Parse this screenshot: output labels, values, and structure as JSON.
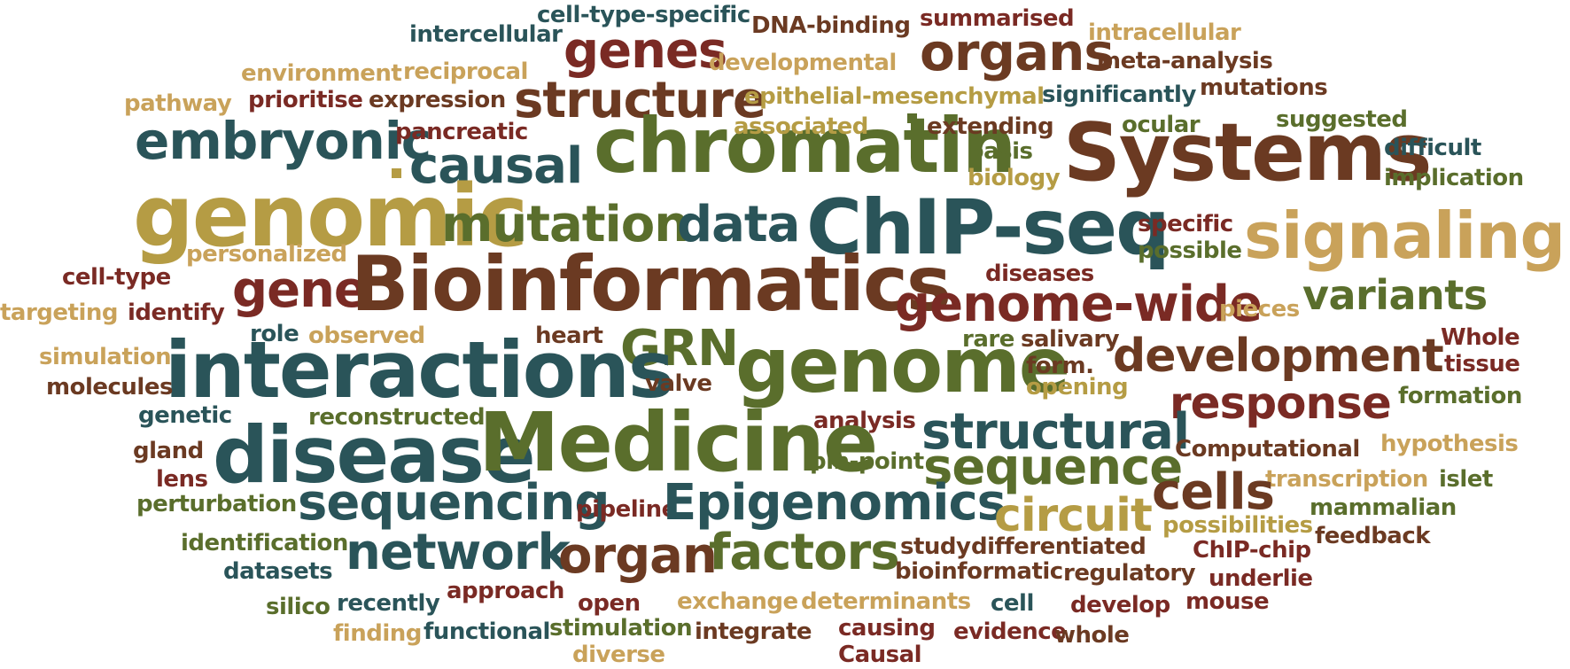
{
  "palette": {
    "teal": "#2a5459",
    "brown": "#6b3a22",
    "maroon": "#7a2a24",
    "olive": "#5a6e2c",
    "gold": "#b59c44",
    "tan": "#c9a25a",
    "ochre": "#a67b34"
  },
  "words": [
    {
      "text": "cell-type-specific",
      "color": "#2a5459"
    },
    {
      "text": "DNA-binding",
      "color": "#6b3a22"
    },
    {
      "text": "summarised",
      "color": "#7a2a24"
    },
    {
      "text": "intercellular",
      "color": "#2a5459"
    },
    {
      "text": "genes",
      "color": "#7a2a24"
    },
    {
      "text": "organs",
      "color": "#6b3a22"
    },
    {
      "text": "intracellular",
      "color": "#c9a25a"
    },
    {
      "text": "environment",
      "color": "#c9a25a"
    },
    {
      "text": "reciprocal",
      "color": "#c9a25a"
    },
    {
      "text": "developmental",
      "color": "#c9a25a"
    },
    {
      "text": "meta-analysis",
      "color": "#6b3a22"
    },
    {
      "text": "pathway",
      "color": "#c9a25a"
    },
    {
      "text": "prioritise",
      "color": "#7a2a24"
    },
    {
      "text": "expression",
      "color": "#6b3a22"
    },
    {
      "text": "structure",
      "color": "#6b3a22"
    },
    {
      "text": "epithelial-mesenchymal",
      "color": "#b59c44"
    },
    {
      "text": "significantly",
      "color": "#2a5459"
    },
    {
      "text": "mutations",
      "color": "#6b3a22"
    },
    {
      "text": "embryonic",
      "color": "#2a5459"
    },
    {
      "text": "pancreatic",
      "color": "#7a2a24"
    },
    {
      "text": "chromatin",
      "color": "#5a6e2c"
    },
    {
      "text": "associated",
      "color": "#b59c44"
    },
    {
      "text": "extending",
      "color": "#6b3a22"
    },
    {
      "text": "ocular",
      "color": "#5a6e2c"
    },
    {
      "text": "suggested",
      "color": "#5a6e2c"
    },
    {
      "text": "Systems",
      "color": "#6b3a22"
    },
    {
      "text": "basis",
      "color": "#5a6e2c"
    },
    {
      "text": "difficult",
      "color": "#2a5459"
    },
    {
      "text": "causal",
      "color": "#2a5459"
    },
    {
      "text": "biology",
      "color": "#b59c44"
    },
    {
      "text": "implication",
      "color": "#5a6e2c"
    },
    {
      "text": "genomic",
      "color": "#b59c44"
    },
    {
      "text": "mutation",
      "color": "#5a6e2c"
    },
    {
      "text": "data",
      "color": "#2a5459"
    },
    {
      "text": "ChIP-seq",
      "color": "#2a5459"
    },
    {
      "text": "specific",
      "color": "#7a2a24"
    },
    {
      "text": "signaling",
      "color": "#c9a25a"
    },
    {
      "text": "possible",
      "color": "#5a6e2c"
    },
    {
      "text": "personalized",
      "color": "#c9a25a"
    },
    {
      "text": "cell-type",
      "color": "#7a2a24"
    },
    {
      "text": "gene",
      "color": "#7a2a24"
    },
    {
      "text": "Bioinformatics",
      "color": "#6b3a22"
    },
    {
      "text": "diseases",
      "color": "#7a2a24"
    },
    {
      "text": "genome-wide",
      "color": "#7a2a24"
    },
    {
      "text": "variants",
      "color": "#5a6e2c"
    },
    {
      "text": "targeting",
      "color": "#c9a25a"
    },
    {
      "text": "identify",
      "color": "#7a2a24"
    },
    {
      "text": "pieces",
      "color": "#c9a25a"
    },
    {
      "text": "role",
      "color": "#2a5459"
    },
    {
      "text": "observed",
      "color": "#c9a25a"
    },
    {
      "text": "heart",
      "color": "#6b3a22"
    },
    {
      "text": "rare",
      "color": "#5a6e2c"
    },
    {
      "text": "salivary",
      "color": "#6b3a22"
    },
    {
      "text": "Whole",
      "color": "#7a2a24"
    },
    {
      "text": "GRN",
      "color": "#5a6e2c"
    },
    {
      "text": "interactions",
      "color": "#2a5459"
    },
    {
      "text": "development",
      "color": "#6b3a22"
    },
    {
      "text": "simulation",
      "color": "#c9a25a"
    },
    {
      "text": "genome",
      "color": "#5a6e2c"
    },
    {
      "text": "form.",
      "color": "#6b3a22"
    },
    {
      "text": "tissue",
      "color": "#7a2a24"
    },
    {
      "text": "molecules",
      "color": "#6b3a22"
    },
    {
      "text": "valve",
      "color": "#6b3a22"
    },
    {
      "text": "opening",
      "color": "#b59c44"
    },
    {
      "text": "response",
      "color": "#7a2a24"
    },
    {
      "text": "formation",
      "color": "#5a6e2c"
    },
    {
      "text": "genetic",
      "color": "#2a5459"
    },
    {
      "text": "reconstructed",
      "color": "#5a6e2c"
    },
    {
      "text": "analysis",
      "color": "#7a2a24"
    },
    {
      "text": "structural",
      "color": "#2a5459"
    },
    {
      "text": "gland",
      "color": "#6b3a22"
    },
    {
      "text": "disease",
      "color": "#2a5459"
    },
    {
      "text": "Medicine",
      "color": "#5a6e2c"
    },
    {
      "text": "Computational",
      "color": "#6b3a22"
    },
    {
      "text": "hypothesis",
      "color": "#c9a25a"
    },
    {
      "text": "pin-point",
      "color": "#5a6e2c"
    },
    {
      "text": "sequence",
      "color": "#5a6e2c"
    },
    {
      "text": "lens",
      "color": "#7a2a24"
    },
    {
      "text": "transcription",
      "color": "#c9a25a"
    },
    {
      "text": "islet",
      "color": "#5a6e2c"
    },
    {
      "text": "cells",
      "color": "#6b3a22"
    },
    {
      "text": "perturbation",
      "color": "#5a6e2c"
    },
    {
      "text": "sequencing",
      "color": "#2a5459"
    },
    {
      "text": "pipeline",
      "color": "#7a2a24"
    },
    {
      "text": "Epigenomics",
      "color": "#2a5459"
    },
    {
      "text": "circuit",
      "color": "#b59c44"
    },
    {
      "text": "mammalian",
      "color": "#5a6e2c"
    },
    {
      "text": "possibilities",
      "color": "#b59c44"
    },
    {
      "text": "identification",
      "color": "#5a6e2c"
    },
    {
      "text": "feedback",
      "color": "#6b3a22"
    },
    {
      "text": "study",
      "color": "#6b3a22"
    },
    {
      "text": "differentiated",
      "color": "#6b3a22"
    },
    {
      "text": "ChIP-chip",
      "color": "#7a2a24"
    },
    {
      "text": "network",
      "color": "#2a5459"
    },
    {
      "text": "organ",
      "color": "#6b3a22"
    },
    {
      "text": "factors",
      "color": "#5a6e2c"
    },
    {
      "text": "datasets",
      "color": "#2a5459"
    },
    {
      "text": "bioinformatic",
      "color": "#6b3a22"
    },
    {
      "text": "regulatory",
      "color": "#6b3a22"
    },
    {
      "text": "underlie",
      "color": "#7a2a24"
    },
    {
      "text": "silico",
      "color": "#5a6e2c"
    },
    {
      "text": "recently",
      "color": "#2a5459"
    },
    {
      "text": "approach",
      "color": "#7a2a24"
    },
    {
      "text": "open",
      "color": "#7a2a24"
    },
    {
      "text": "exchange",
      "color": "#c9a25a"
    },
    {
      "text": "determinants",
      "color": "#c9a25a"
    },
    {
      "text": "cell",
      "color": "#2a5459"
    },
    {
      "text": "develop",
      "color": "#7a2a24"
    },
    {
      "text": "mouse",
      "color": "#7a2a24"
    },
    {
      "text": "finding",
      "color": "#c9a25a"
    },
    {
      "text": "functional",
      "color": "#2a5459"
    },
    {
      "text": "stimulation",
      "color": "#5a6e2c"
    },
    {
      "text": "integrate",
      "color": "#6b3a22"
    },
    {
      "text": "causing",
      "color": "#7a2a24"
    },
    {
      "text": "evidence",
      "color": "#7a2a24"
    },
    {
      "text": "whole",
      "color": "#6b3a22"
    },
    {
      "text": "diverse",
      "color": "#c9a25a"
    },
    {
      "text": "Causal",
      "color": "#7a2a24"
    }
  ]
}
